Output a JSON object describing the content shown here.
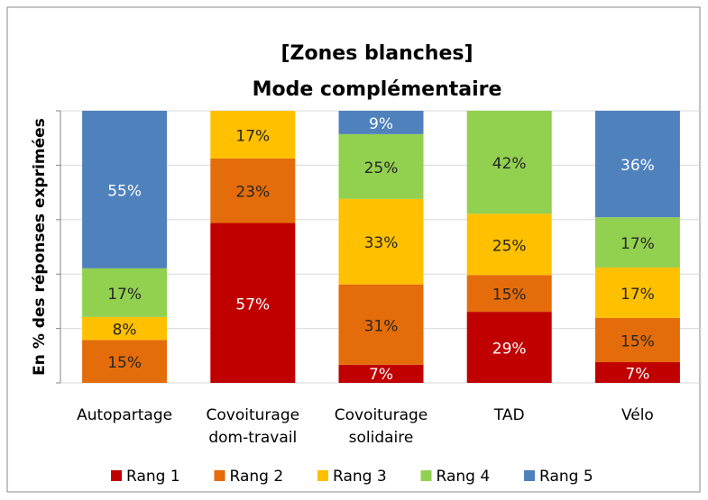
{
  "chart_data": {
    "type": "bar",
    "stacking": "percent",
    "title": "[Zones blanches]\nMode complémentaire",
    "y_label": "En % des réponses exprimées",
    "categories": [
      "Autopartage",
      "Covoiturage\ndom-travail",
      "Covoiturage\nsolidaire",
      "TAD",
      "Vélo"
    ],
    "series": [
      {
        "name": "Rang 1",
        "color": "#c00000",
        "label_color": "#ffffff",
        "values": [
          null,
          57,
          7,
          29,
          7
        ],
        "value_labels": [
          null,
          "57%",
          "7%",
          "29%",
          "7%"
        ]
      },
      {
        "name": "Rang 2",
        "color": "#e46c0a",
        "label_color": "#262626",
        "values": [
          15,
          23,
          31,
          15,
          15
        ],
        "value_labels": [
          "15%",
          "23%",
          "31%",
          "15%",
          "15%"
        ]
      },
      {
        "name": "Rang 3",
        "color": "#ffc000",
        "label_color": "#262626",
        "values": [
          8,
          17,
          33,
          25,
          17
        ],
        "value_labels": [
          "8%",
          "17%",
          "33%",
          "25%",
          "17%"
        ]
      },
      {
        "name": "Rang 4",
        "color": "#92d050",
        "label_color": "#262626",
        "values": [
          17,
          null,
          25,
          42,
          17
        ],
        "value_labels": [
          "17%",
          null,
          "25%",
          "42%",
          "17%"
        ]
      },
      {
        "name": "Rang 5",
        "color": "#4f81bd",
        "label_color": "#ffffff",
        "values": [
          55,
          null,
          9,
          null,
          36
        ],
        "value_labels": [
          "55%",
          null,
          "9%",
          null,
          "36%"
        ]
      }
    ],
    "ylim": [
      0,
      100
    ],
    "yticks": [
      0,
      20,
      40,
      60,
      80,
      100
    ],
    "grid": true,
    "legend": "bottom"
  }
}
